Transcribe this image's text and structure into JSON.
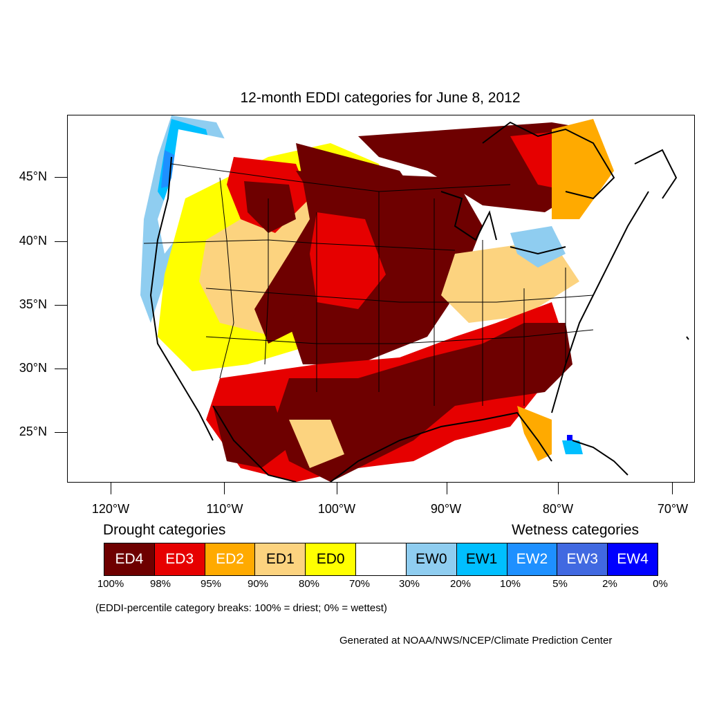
{
  "title": "12-month EDDI categories for June 8, 2012",
  "lat_labels": [
    "45°N",
    "40°N",
    "35°N",
    "30°N",
    "25°N"
  ],
  "lon_labels": [
    "120°W",
    "110°W",
    "100°W",
    "90°W",
    "80°W",
    "70°W"
  ],
  "legend": {
    "drought_heading": "Drought categories",
    "wetness_heading": "Wetness categories",
    "categories": [
      {
        "label": "ED4",
        "color": "#6e0000",
        "text_color": "#ffffff"
      },
      {
        "label": "ED3",
        "color": "#e60000",
        "text_color": "#ffffff"
      },
      {
        "label": "ED2",
        "color": "#ffaa00",
        "text_color": "#ffffff"
      },
      {
        "label": "ED1",
        "color": "#fcd37f",
        "text_color": "#000000"
      },
      {
        "label": "ED0",
        "color": "#ffff00",
        "text_color": "#000000"
      },
      {
        "label": "",
        "color": "#ffffff",
        "text_color": "#000000"
      },
      {
        "label": "EW0",
        "color": "#8fcdf0",
        "text_color": "#000000"
      },
      {
        "label": "EW1",
        "color": "#00bfff",
        "text_color": "#000000"
      },
      {
        "label": "EW2",
        "color": "#1e90ff",
        "text_color": "#ffffff"
      },
      {
        "label": "EW3",
        "color": "#4169e1",
        "text_color": "#ffffff"
      },
      {
        "label": "EW4",
        "color": "#0000ff",
        "text_color": "#ffffff"
      }
    ],
    "ticks": [
      "100%",
      "98%",
      "95%",
      "90%",
      "80%",
      "70%",
      "30%",
      "20%",
      "10%",
      "5%",
      "2%",
      "0%"
    ]
  },
  "note": "(EDDI-percentile category breaks: 100% = driest; 0% = wettest)",
  "credit": "Generated at NOAA/NWS/NCEP/Climate Prediction Center"
}
